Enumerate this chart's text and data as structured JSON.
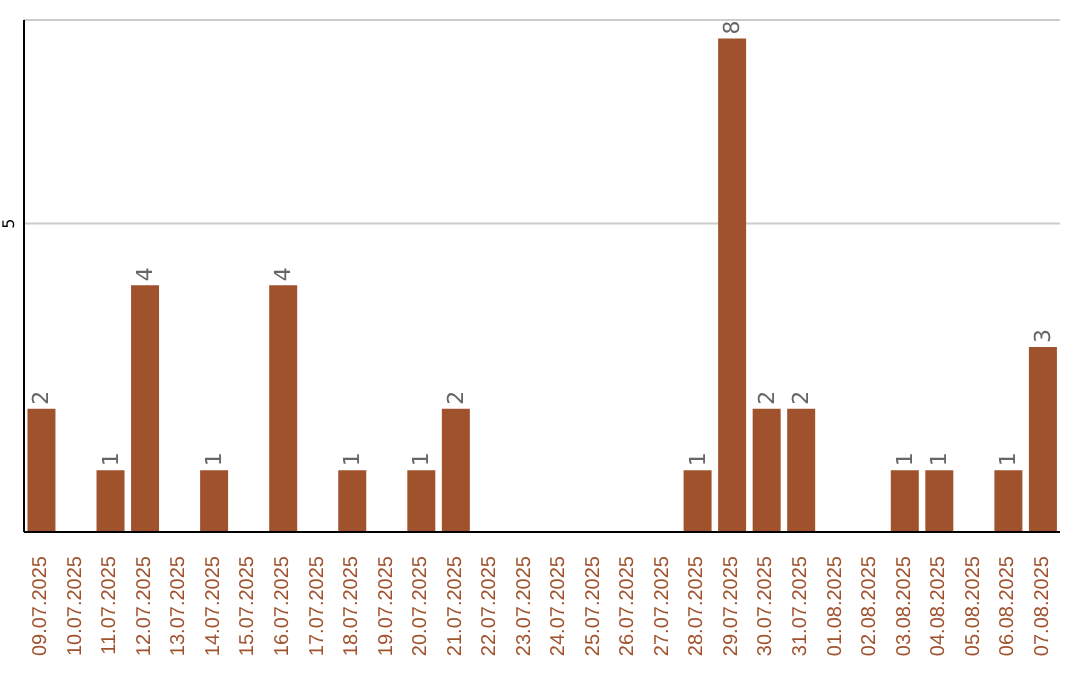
{
  "chart_data": {
    "type": "bar",
    "categories": [
      "09.07.2025",
      "10.07.2025",
      "11.07.2025",
      "12.07.2025",
      "13.07.2025",
      "14.07.2025",
      "15.07.2025",
      "16.07.2025",
      "17.07.2025",
      "18.07.2025",
      "19.07.2025",
      "20.07.2025",
      "21.07.2025",
      "22.07.2025",
      "23.07.2025",
      "24.07.2025",
      "25.07.2025",
      "26.07.2025",
      "27.07.2025",
      "28.07.2025",
      "29.07.2025",
      "30.07.2025",
      "31.07.2025",
      "01.08.2025",
      "02.08.2025",
      "03.08.2025",
      "04.08.2025",
      "05.08.2025",
      "06.08.2025",
      "07.08.2025"
    ],
    "values": [
      2,
      0,
      1,
      4,
      0,
      1,
      0,
      4,
      0,
      1,
      0,
      1,
      2,
      0,
      0,
      0,
      0,
      0,
      0,
      1,
      8,
      2,
      2,
      0,
      0,
      1,
      1,
      0,
      1,
      3
    ],
    "value_labels": [
      "2",
      null,
      "1",
      "4",
      null,
      "1",
      null,
      "4",
      null,
      "1",
      null,
      "1",
      "2",
      null,
      null,
      null,
      null,
      null,
      null,
      "1",
      "8",
      "2",
      "2",
      null,
      null,
      "1",
      "1",
      null,
      "1",
      "3"
    ],
    "color": "#a0522d",
    "ylim": [
      0,
      8.3
    ],
    "yticks": [
      5
    ],
    "grid": "y"
  }
}
